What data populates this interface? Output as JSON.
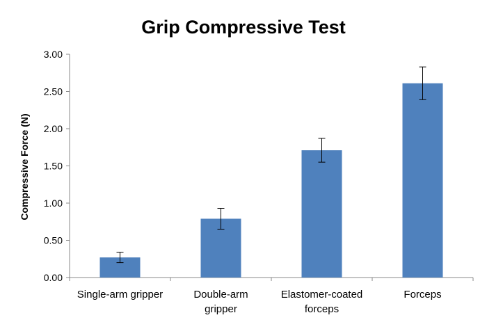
{
  "chart_data": {
    "type": "bar",
    "title": "Grip Compressive Test",
    "xlabel": "",
    "ylabel": "Compressive Force (N)",
    "categories": [
      [
        "Single-arm gripper"
      ],
      [
        "Double-arm",
        "gripper"
      ],
      [
        "Elastomer-coated",
        "forceps"
      ],
      [
        "Forceps"
      ]
    ],
    "values": [
      0.27,
      0.79,
      1.71,
      2.61
    ],
    "error": [
      0.07,
      0.14,
      0.16,
      0.22
    ],
    "ylim": [
      0,
      3
    ],
    "yticks": [
      "0.00",
      "0.50",
      "1.00",
      "1.50",
      "2.00",
      "2.50",
      "3.00"
    ],
    "grid": false,
    "legend": "none",
    "bar_color": "#4f81bd"
  }
}
